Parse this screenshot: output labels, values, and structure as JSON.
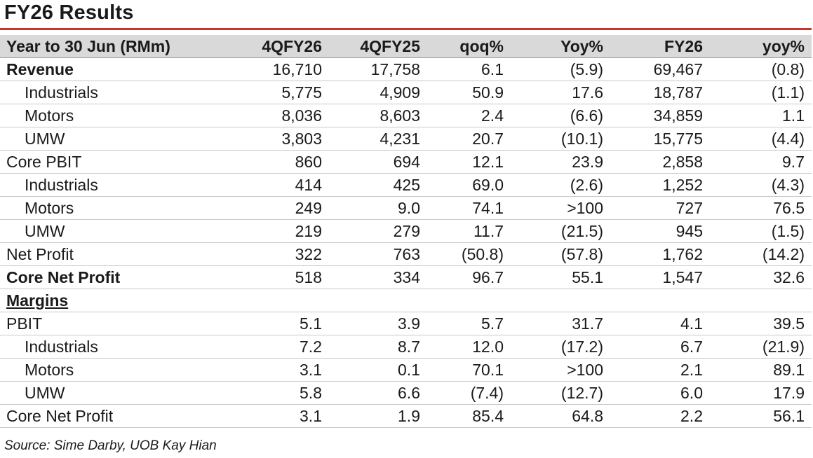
{
  "title": "FY26 Results",
  "table": {
    "headers": [
      "Year to 30 Jun (RMm)",
      "4QFY26",
      "4QFY25",
      "qoq%",
      "Yoy%",
      "FY26",
      "yoy%"
    ],
    "rows": [
      {
        "label": "Revenue",
        "style": "bold",
        "values": [
          "16,710",
          "17,758",
          "6.1",
          "(5.9)",
          "69,467",
          "(0.8)"
        ]
      },
      {
        "label": "Industrials",
        "style": "indent",
        "values": [
          "5,775",
          "4,909",
          "50.9",
          "17.6",
          "18,787",
          "(1.1)"
        ]
      },
      {
        "label": "Motors",
        "style": "indent",
        "values": [
          "8,036",
          "8,603",
          "2.4",
          "(6.6)",
          "34,859",
          "1.1"
        ]
      },
      {
        "label": "UMW",
        "style": "indent",
        "values": [
          "3,803",
          "4,231",
          "20.7",
          "(10.1)",
          "15,775",
          "(4.4)"
        ]
      },
      {
        "label": "Core PBIT",
        "style": "normal",
        "values": [
          "860",
          "694",
          "12.1",
          "23.9",
          "2,858",
          "9.7"
        ]
      },
      {
        "label": "Industrials",
        "style": "indent",
        "values": [
          "414",
          "425",
          "69.0",
          "(2.6)",
          "1,252",
          "(4.3)"
        ]
      },
      {
        "label": "Motors",
        "style": "indent",
        "values": [
          "249",
          "9.0",
          "74.1",
          ">100",
          "727",
          "76.5"
        ]
      },
      {
        "label": "UMW",
        "style": "indent",
        "values": [
          "219",
          "279",
          "11.7",
          "(21.5)",
          "945",
          "(1.5)"
        ]
      },
      {
        "label": "Net Profit",
        "style": "normal",
        "values": [
          "322",
          "763",
          "(50.8)",
          "(57.8)",
          "1,762",
          "(14.2)"
        ]
      },
      {
        "label": "Core Net Profit",
        "style": "bold",
        "values": [
          "518",
          "334",
          "96.7",
          "55.1",
          "1,547",
          "32.6"
        ]
      },
      {
        "label": "Margins",
        "style": "section",
        "values": [
          "",
          "",
          "",
          "",
          "",
          ""
        ]
      },
      {
        "label": "PBIT",
        "style": "normal",
        "values": [
          "5.1",
          "3.9",
          "5.7",
          "31.7",
          "4.1",
          "39.5"
        ]
      },
      {
        "label": "Industrials",
        "style": "indent",
        "values": [
          "7.2",
          "8.7",
          "12.0",
          "(17.2)",
          "6.7",
          "(21.9)"
        ]
      },
      {
        "label": "Motors",
        "style": "indent",
        "values": [
          "3.1",
          "0.1",
          "70.1",
          ">100",
          "2.1",
          "89.1"
        ]
      },
      {
        "label": "UMW",
        "style": "indent",
        "values": [
          "5.8",
          "6.6",
          "(7.4)",
          "(12.7)",
          "6.0",
          "17.9"
        ]
      },
      {
        "label": "Core Net Profit",
        "style": "normal",
        "values": [
          "3.1",
          "1.9",
          "85.4",
          "64.8",
          "2.2",
          "56.1"
        ]
      }
    ]
  },
  "source": "Source: Sime Darby, UOB Kay Hian"
}
